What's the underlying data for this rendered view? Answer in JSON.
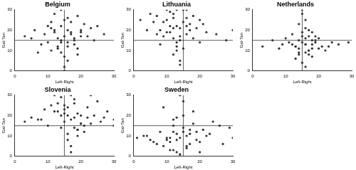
{
  "chart_data": [
    {
      "type": "scatter",
      "title": "Belgium",
      "x_label": "Left-Right",
      "y_label": "Gal-Tan",
      "color": "#333333",
      "marker": "circle",
      "grid": false,
      "xlim": [
        0,
        30
      ],
      "ylim": [
        0,
        30
      ],
      "xticks": [
        0,
        10,
        20,
        30
      ],
      "yticks": [
        0,
        10,
        20,
        30
      ],
      "reference_lines": [
        {
          "axis": "x",
          "value": 15
        },
        {
          "axis": "y",
          "value": 15
        }
      ],
      "x": [
        15,
        12,
        18,
        10,
        20,
        14,
        16,
        13,
        17,
        8,
        22,
        11,
        19,
        15,
        9,
        21,
        14,
        16,
        12,
        18,
        6,
        24,
        13,
        17,
        15,
        10,
        20,
        11,
        19,
        16,
        14,
        3,
        27,
        15,
        12,
        18,
        7,
        23,
        16,
        14,
        13,
        17,
        5,
        25,
        15,
        11,
        19,
        14,
        16,
        20
      ],
      "values": [
        17,
        19,
        15,
        14,
        20,
        22,
        12,
        16,
        18,
        13,
        17,
        21,
        11,
        25,
        18,
        23,
        9,
        14,
        28,
        16,
        20,
        15,
        12,
        24,
        7,
        22,
        19,
        10,
        27,
        5,
        30,
        17,
        18,
        2,
        20,
        13,
        9,
        21,
        26,
        15,
        11,
        19,
        16,
        22,
        0,
        24,
        8,
        14,
        20,
        17
      ]
    },
    {
      "type": "scatter",
      "title": "Lithuania",
      "x_label": "Left-Right",
      "y_label": "Gal-Tan",
      "color": "#333333",
      "marker": "circle",
      "grid": false,
      "xlim": [
        0,
        30
      ],
      "ylim": [
        0,
        30
      ],
      "xticks": [
        0,
        10,
        20,
        30
      ],
      "yticks": [
        0,
        10,
        20,
        30
      ],
      "reference_lines": [
        {
          "axis": "x",
          "value": 15
        },
        {
          "axis": "y",
          "value": 15
        }
      ],
      "x": [
        13,
        10,
        16,
        8,
        18,
        12,
        14,
        11,
        15,
        6,
        20,
        9,
        17,
        13,
        7,
        22,
        12,
        14,
        10,
        16,
        4,
        25,
        13,
        15,
        11,
        19,
        8,
        14,
        12,
        16,
        2,
        28,
        13,
        10,
        17,
        14,
        5,
        21,
        12,
        15,
        9,
        18,
        13,
        11,
        30,
        14,
        7,
        16,
        12,
        20
      ],
      "values": [
        22,
        25,
        18,
        20,
        16,
        28,
        21,
        19,
        30,
        24,
        14,
        17,
        23,
        12,
        27,
        19,
        26,
        15,
        30,
        22,
        20,
        18,
        10,
        24,
        29,
        21,
        13,
        17,
        8,
        26,
        25,
        15,
        30,
        19,
        20,
        5,
        28,
        23,
        16,
        11,
        24,
        27,
        14,
        22,
        20,
        3,
        18,
        30,
        21,
        25
      ]
    },
    {
      "type": "scatter",
      "title": "Netherlands",
      "x_label": "Left-Right",
      "y_label": "Gal-Tan",
      "color": "#333333",
      "marker": "circle",
      "grid": false,
      "xlim": [
        0,
        30
      ],
      "ylim": [
        0,
        30
      ],
      "xticks": [
        0,
        10,
        20,
        30
      ],
      "yticks": [
        0,
        10,
        20,
        30
      ],
      "reference_lines": [
        {
          "axis": "x",
          "value": 15
        },
        {
          "axis": "y",
          "value": 15
        }
      ],
      "x": [
        16,
        14,
        18,
        13,
        19,
        15,
        17,
        12,
        20,
        16,
        11,
        21,
        15,
        17,
        14,
        18,
        9,
        23,
        16,
        13,
        19,
        15,
        17,
        6,
        26,
        14,
        18,
        16,
        12,
        20,
        15,
        17,
        3,
        29,
        16,
        14,
        18,
        10,
        22,
        15,
        13,
        19,
        16,
        8,
        24,
        17,
        15,
        14,
        18,
        16
      ],
      "values": [
        13,
        15,
        11,
        12,
        14,
        17,
        10,
        13,
        16,
        9,
        14,
        12,
        19,
        8,
        11,
        15,
        13,
        12,
        21,
        6,
        17,
        14,
        10,
        15,
        13,
        23,
        7,
        16,
        18,
        11,
        4,
        20,
        12,
        14,
        25,
        9,
        13,
        16,
        10,
        28,
        12,
        15,
        2,
        11,
        14,
        17,
        30,
        8,
        19,
        13
      ]
    },
    {
      "type": "scatter",
      "title": "Slovenia",
      "x_label": "Left-Right",
      "y_label": "Gal-Tan",
      "color": "#333333",
      "marker": "circle",
      "grid": false,
      "xlim": [
        0,
        30
      ],
      "ylim": [
        0,
        30
      ],
      "xticks": [
        0,
        10,
        20,
        30
      ],
      "yticks": [
        0,
        10,
        20,
        30
      ],
      "reference_lines": [
        {
          "axis": "x",
          "value": 15
        },
        {
          "axis": "y",
          "value": 15
        }
      ],
      "x": [
        17,
        14,
        20,
        12,
        22,
        16,
        18,
        15,
        19,
        10,
        24,
        13,
        21,
        17,
        8,
        26,
        15,
        19,
        11,
        23,
        5,
        28,
        16,
        18,
        14,
        20,
        30,
        12,
        22,
        17,
        15,
        19,
        3,
        25,
        16,
        18,
        9,
        21,
        14,
        20,
        17,
        13,
        27,
        15,
        19,
        7,
        23,
        16,
        18,
        30
      ],
      "values": [
        18,
        20,
        16,
        22,
        19,
        24,
        14,
        17,
        21,
        15,
        20,
        26,
        12,
        30,
        18,
        17,
        23,
        10,
        25,
        16,
        19,
        22,
        8,
        28,
        14,
        20,
        18,
        30,
        24,
        5,
        21,
        13,
        17,
        27,
        11,
        19,
        23,
        15,
        29,
        16,
        2,
        22,
        19,
        25,
        13,
        18,
        30,
        20,
        26,
        15
      ]
    },
    {
      "type": "scatter",
      "title": "Sweden",
      "x_label": "Left-Right",
      "y_label": "Gal-Tan",
      "color": "#333333",
      "marker": "circle",
      "grid": false,
      "xlim": [
        0,
        30
      ],
      "ylim": [
        0,
        30
      ],
      "xticks": [
        0,
        10,
        20,
        30
      ],
      "yticks": [
        0,
        10,
        20,
        30
      ],
      "reference_lines": [
        {
          "axis": "x",
          "value": 15
        },
        {
          "axis": "y",
          "value": 15
        }
      ],
      "x": [
        14,
        11,
        17,
        9,
        19,
        13,
        15,
        12,
        16,
        7,
        21,
        10,
        18,
        14,
        5,
        23,
        12,
        16,
        8,
        20,
        3,
        26,
        13,
        15,
        11,
        17,
        29,
        9,
        19,
        14,
        12,
        16,
        1,
        24,
        13,
        15,
        6,
        22,
        11,
        17,
        14,
        10,
        27,
        12,
        18,
        4,
        20,
        15,
        13,
        30
      ],
      "values": [
        9,
        7,
        11,
        5,
        12,
        8,
        14,
        3,
        10,
        6,
        13,
        9,
        16,
        0,
        8,
        11,
        18,
        4,
        12,
        7,
        10,
        15,
        2,
        20,
        9,
        6,
        14,
        24,
        8,
        1,
        12,
        5,
        9,
        17,
        11,
        27,
        7,
        10,
        3,
        13,
        30,
        8,
        6,
        15,
        22,
        10,
        2,
        12,
        19,
        9
      ]
    }
  ]
}
